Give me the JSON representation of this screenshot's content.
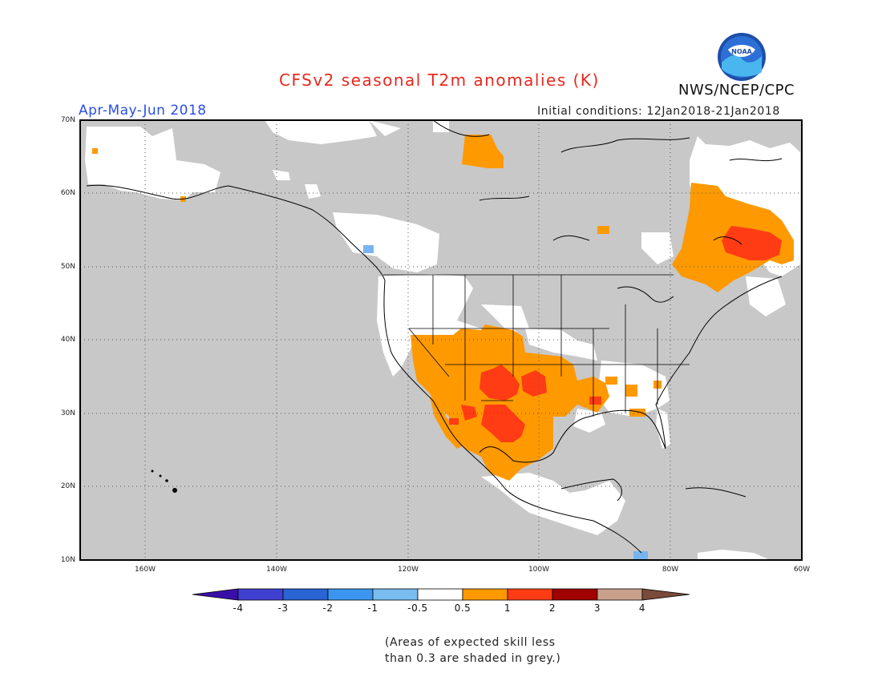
{
  "header": {
    "title": "CFSv2 seasonal T2m anomalies (K)",
    "organization": "NWS/NCEP/CPC",
    "logo_text": "NOAA",
    "period": "Apr-May-Jun 2018",
    "initial_conditions": "Initial conditions: 12Jan2018-21Jan2018"
  },
  "map": {
    "lat_labels": [
      "70N",
      "60N",
      "50N",
      "40N",
      "30N",
      "20N",
      "10N"
    ],
    "lon_labels": [
      "160W",
      "140W",
      "120W",
      "100W",
      "80W",
      "60W"
    ],
    "lat_range": [
      10,
      70
    ],
    "lon_range": [
      -171,
      -60
    ],
    "grid_lines": "dotted",
    "background_color": "#c8c8c8",
    "neutral_color": "#ffffff",
    "warm_colors": [
      "#ff9900",
      "#ff3c14",
      "#a00000"
    ],
    "cool_colors": [
      "#78b4f0",
      "#5095e6",
      "#2866d2"
    ]
  },
  "colorbar": {
    "labels": [
      "-4",
      "-3",
      "-2",
      "-1",
      "-0.5",
      "0.5",
      "1",
      "2",
      "3",
      "4"
    ],
    "colors": [
      "#3a0ea8",
      "#4040d0",
      "#2864d2",
      "#3c96f0",
      "#78bcf0",
      "#ffffff",
      "#ff9900",
      "#ff3c14",
      "#a00000",
      "#c8a08c",
      "#7a4a3a"
    ]
  },
  "footnote": {
    "line1": "(Areas of expected skill less",
    "line2": "than 0.3 are shaded in grey.)"
  }
}
